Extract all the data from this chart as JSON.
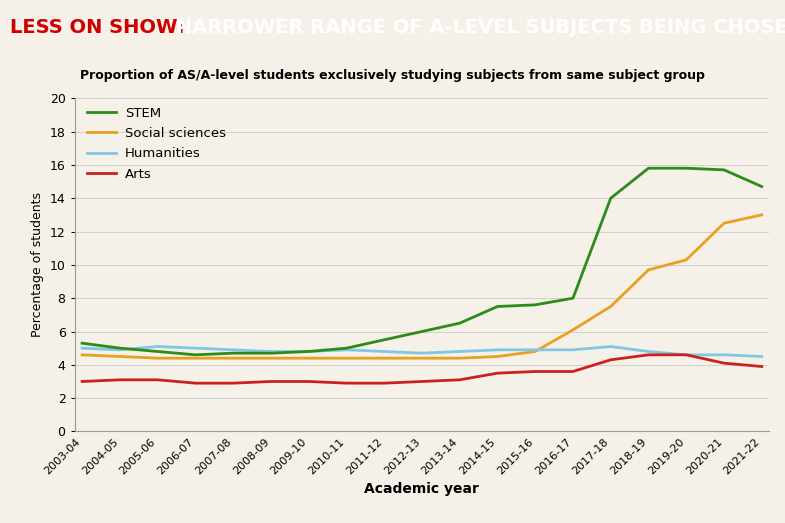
{
  "title_red": "LESS ON SHOW:",
  "title_black": " NARROWER RANGE OF A-LEVEL SUBJECTS BEING CHOSEN",
  "subtitle": "Proportion of AS/A-level students exclusively studying subjects from same subject group",
  "xlabel": "Academic year",
  "ylabel": "Percentage of students",
  "background_color": "#f5f0e8",
  "banner_color": "#0a0a0a",
  "plot_bg_color": "#f5f0e8",
  "ylim": [
    0,
    20
  ],
  "yticks": [
    0,
    2,
    4,
    6,
    8,
    10,
    12,
    14,
    16,
    18,
    20
  ],
  "years": [
    "2003-04",
    "2004-05",
    "2005-06",
    "2006-07",
    "2007-08",
    "2008-09",
    "2009-10",
    "2010-11",
    "2011-12",
    "2012-13",
    "2013-14",
    "2014-15",
    "2015-16",
    "2016-17",
    "2017-18",
    "2018-19",
    "2019-20",
    "2020-21",
    "2021-22"
  ],
  "STEM": [
    5.3,
    5.0,
    4.8,
    4.6,
    4.7,
    4.7,
    4.8,
    5.0,
    5.5,
    6.0,
    6.5,
    7.5,
    7.6,
    8.0,
    14.0,
    15.8,
    15.8,
    15.7,
    14.7
  ],
  "Social_sciences": [
    4.6,
    4.5,
    4.4,
    4.4,
    4.4,
    4.4,
    4.4,
    4.4,
    4.4,
    4.4,
    4.4,
    4.5,
    4.8,
    6.1,
    7.5,
    9.7,
    10.3,
    12.5,
    13.0
  ],
  "Humanities": [
    5.0,
    4.9,
    5.1,
    5.0,
    4.9,
    4.8,
    4.8,
    4.9,
    4.8,
    4.7,
    4.8,
    4.9,
    4.9,
    4.9,
    5.1,
    4.8,
    4.6,
    4.6,
    4.5
  ],
  "Arts": [
    3.0,
    3.1,
    3.1,
    2.9,
    2.9,
    3.0,
    3.0,
    2.9,
    2.9,
    3.0,
    3.1,
    3.5,
    3.6,
    3.6,
    4.3,
    4.6,
    4.6,
    4.1,
    3.9
  ],
  "colors": {
    "STEM": "#2e8b1a",
    "Social_sciences": "#e8a020",
    "Humanities": "#7ec8e3",
    "Arts": "#cc2020"
  },
  "line_width": 2.0,
  "grid_color": "#cccccc",
  "grid_linewidth": 0.6,
  "banner_red": "#cc0000",
  "banner_white": "#ffffff"
}
